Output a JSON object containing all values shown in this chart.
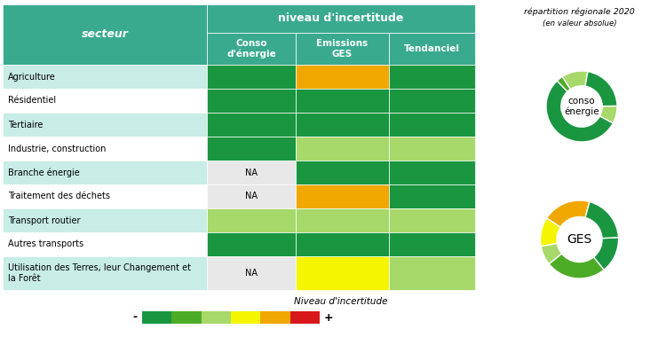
{
  "title_right": "répartition régionale 2020",
  "subtitle_right": "(en valeur absolue)",
  "header_main": "niveau d'incertitude",
  "col_header_sector": "secteur",
  "col_headers": [
    "Conso\nd'énergie",
    "Emissions\nGES",
    "Tendanciel"
  ],
  "sectors": [
    "Agriculture",
    "Résidentiel",
    "Tertiaire",
    "Industrie, construction",
    "Branche énergie",
    "Traitement des déchets",
    "Transport routier",
    "Autres transports",
    "Utilisation des Terres, leur Changement et\nla Forêt"
  ],
  "colors": {
    "dark_green": "#1a9641",
    "medium_green": "#4dac26",
    "light_green": "#a6d96a",
    "yellow": "#f5f500",
    "orange": "#f0a800",
    "red": "#d7191c",
    "teal_header": "#3aaa8f",
    "teal_light": "#b2dfdb",
    "teal_very_light": "#c8ece6",
    "na_bg": "#e8e8e8",
    "white": "#ffffff"
  },
  "cell_colors": {
    "Agriculture": [
      "dark_green",
      "orange",
      "dark_green"
    ],
    "Résidentiel": [
      "dark_green",
      "dark_green",
      "dark_green"
    ],
    "Tertiaire": [
      "dark_green",
      "dark_green",
      "dark_green"
    ],
    "Industrie, construction": [
      "dark_green",
      "light_green",
      "light_green"
    ],
    "Branche énergie": [
      "NA",
      "dark_green",
      "dark_green"
    ],
    "Traitement des déchets": [
      "NA",
      "orange",
      "dark_green"
    ],
    "Transport routier": [
      "light_green",
      "light_green",
      "light_green"
    ],
    "Autres transports": [
      "dark_green",
      "dark_green",
      "dark_green"
    ],
    "UTCF": [
      "NA",
      "yellow",
      "light_green"
    ]
  },
  "row_bg_colors": [
    "teal_very_light",
    "white",
    "teal_very_light",
    "white",
    "teal_very_light",
    "white",
    "teal_very_light",
    "white",
    "teal_very_light"
  ],
  "legend_colors": [
    "#1a9641",
    "#4dac26",
    "#a6d96a",
    "#f5f500",
    "#f0a800",
    "#d7191c"
  ],
  "legend_label_minus": "-",
  "legend_label_plus": "+",
  "legend_title": "Niveau d'incertitude",
  "conso_donut": [
    12,
    3,
    55,
    8,
    22
  ],
  "conso_donut_colors": [
    "#a6d96a",
    "#4dac26",
    "#1a9641",
    "#a6d96a",
    "#1a9641"
  ],
  "ges_donut": [
    20,
    12,
    8,
    25,
    15,
    20
  ],
  "ges_donut_colors": [
    "#f0a800",
    "#f5f500",
    "#a6d96a",
    "#4dac26",
    "#1a9641",
    "#1a9641"
  ]
}
